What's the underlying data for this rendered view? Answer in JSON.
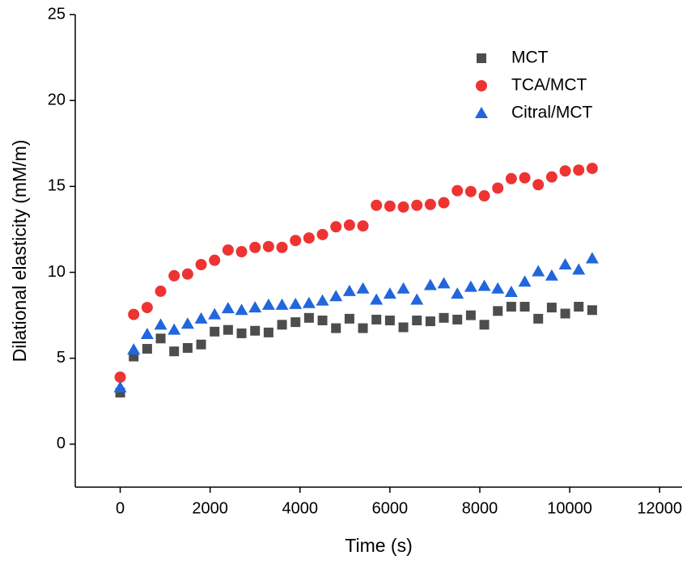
{
  "chart_data": {
    "type": "scatter",
    "x_label": "Time (s)",
    "y_label": "Dilational elasticity (mM/m)",
    "xlim": [
      -1000,
      12500
    ],
    "ylim": [
      -2.5,
      25
    ],
    "xticks": [
      0,
      2000,
      4000,
      6000,
      8000,
      10000,
      12000
    ],
    "yticks": [
      0,
      5,
      10,
      15,
      20,
      25
    ],
    "legend": "upper-right",
    "x": [
      0,
      300,
      600,
      900,
      1200,
      1500,
      1800,
      2100,
      2400,
      2700,
      3000,
      3300,
      3600,
      3900,
      4200,
      4500,
      4800,
      5100,
      5400,
      5700,
      6000,
      6300,
      6600,
      6900,
      7200,
      7500,
      7800,
      8100,
      8400,
      8700,
      9000,
      9300,
      9600,
      9900,
      10200,
      10500
    ],
    "series": [
      {
        "name": "MCT",
        "color": "#4d4d4d",
        "marker": "square",
        "values": [
          3.0,
          5.1,
          5.55,
          6.15,
          5.4,
          5.6,
          5.8,
          6.55,
          6.65,
          6.45,
          6.6,
          6.5,
          6.95,
          7.1,
          7.35,
          7.2,
          6.75,
          7.3,
          6.75,
          7.25,
          7.2,
          6.8,
          7.2,
          7.15,
          7.35,
          7.25,
          7.5,
          6.95,
          7.75,
          8.0,
          8.0,
          7.3,
          7.95,
          7.6,
          8.0,
          7.8
        ]
      },
      {
        "name": "TCA/MCT",
        "color": "#ee3333",
        "marker": "circle",
        "values": [
          3.9,
          7.55,
          7.95,
          8.9,
          9.8,
          9.9,
          10.45,
          10.7,
          11.3,
          11.2,
          11.45,
          11.5,
          11.45,
          11.85,
          12.0,
          12.2,
          12.65,
          12.75,
          12.7,
          13.9,
          13.85,
          13.8,
          13.9,
          13.95,
          14.05,
          14.75,
          14.7,
          14.45,
          14.9,
          15.45,
          15.5,
          15.1,
          15.55,
          15.9,
          15.95,
          16.05
        ]
      },
      {
        "name": "Citral/MCT",
        "color": "#2266dd",
        "marker": "triangle",
        "values": [
          3.3,
          5.5,
          6.4,
          6.95,
          6.65,
          7.0,
          7.3,
          7.55,
          7.9,
          7.8,
          7.95,
          8.1,
          8.1,
          8.15,
          8.2,
          8.35,
          8.6,
          8.9,
          9.05,
          8.4,
          8.75,
          9.05,
          8.4,
          9.25,
          9.35,
          8.75,
          9.15,
          9.2,
          9.05,
          8.85,
          9.45,
          10.05,
          9.8,
          10.45,
          10.15,
          10.8
        ]
      }
    ]
  }
}
